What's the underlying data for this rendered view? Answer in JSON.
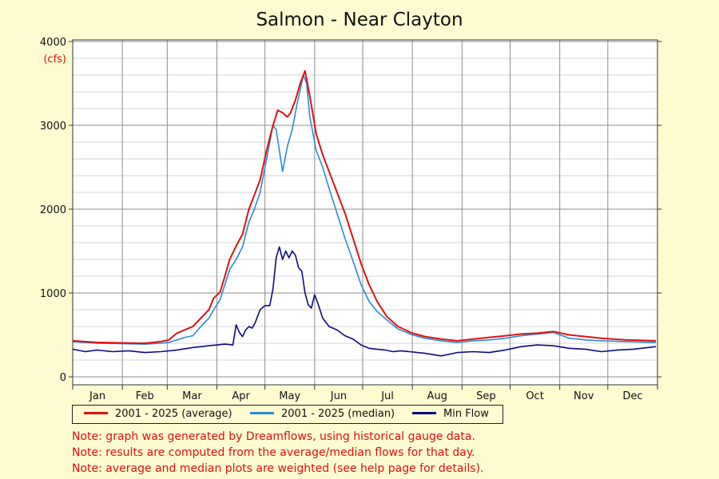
{
  "chart_data": {
    "type": "line",
    "title": "Salmon - Near Clayton",
    "ylabel": "(cfs)",
    "xlabel": "",
    "ylim": [
      0,
      4000
    ],
    "xlim": [
      0,
      365
    ],
    "yticks": [
      0,
      1000,
      2000,
      3000,
      4000
    ],
    "month_labels": [
      "Jan",
      "Feb",
      "Mar",
      "Apr",
      "May",
      "Jun",
      "Jul",
      "Aug",
      "Sep",
      "Oct",
      "Nov",
      "Dec"
    ],
    "grid": true,
    "legend_placement": "bottom-left",
    "series": [
      {
        "name": "2001 - 2025 (average)",
        "color": "#e01010",
        "points": [
          [
            0,
            430
          ],
          [
            15,
            410
          ],
          [
            30,
            405
          ],
          [
            45,
            400
          ],
          [
            55,
            420
          ],
          [
            60,
            440
          ],
          [
            65,
            520
          ],
          [
            70,
            560
          ],
          [
            75,
            600
          ],
          [
            80,
            700
          ],
          [
            85,
            800
          ],
          [
            88,
            940
          ],
          [
            92,
            1010
          ],
          [
            95,
            1200
          ],
          [
            98,
            1400
          ],
          [
            102,
            1560
          ],
          [
            106,
            1700
          ],
          [
            108,
            1850
          ],
          [
            110,
            2000
          ],
          [
            113,
            2150
          ],
          [
            117,
            2350
          ],
          [
            121,
            2700
          ],
          [
            125,
            3000
          ],
          [
            128,
            3180
          ],
          [
            131,
            3150
          ],
          [
            134,
            3100
          ],
          [
            136,
            3150
          ],
          [
            139,
            3300
          ],
          [
            142,
            3500
          ],
          [
            145,
            3650
          ],
          [
            148,
            3350
          ],
          [
            152,
            2900
          ],
          [
            156,
            2650
          ],
          [
            160,
            2450
          ],
          [
            165,
            2200
          ],
          [
            170,
            1950
          ],
          [
            175,
            1650
          ],
          [
            180,
            1350
          ],
          [
            185,
            1100
          ],
          [
            190,
            900
          ],
          [
            196,
            720
          ],
          [
            203,
            600
          ],
          [
            212,
            520
          ],
          [
            220,
            480
          ],
          [
            230,
            450
          ],
          [
            240,
            430
          ],
          [
            250,
            450
          ],
          [
            260,
            470
          ],
          [
            270,
            490
          ],
          [
            280,
            510
          ],
          [
            290,
            520
          ],
          [
            300,
            540
          ],
          [
            310,
            500
          ],
          [
            320,
            480
          ],
          [
            330,
            460
          ],
          [
            345,
            440
          ],
          [
            364,
            430
          ]
        ]
      },
      {
        "name": "2001 - 2025 (median)",
        "color": "#2b8ad6",
        "points": [
          [
            0,
            420
          ],
          [
            15,
            400
          ],
          [
            30,
            395
          ],
          [
            45,
            390
          ],
          [
            55,
            400
          ],
          [
            60,
            410
          ],
          [
            65,
            440
          ],
          [
            70,
            470
          ],
          [
            75,
            490
          ],
          [
            80,
            600
          ],
          [
            85,
            700
          ],
          [
            88,
            800
          ],
          [
            92,
            920
          ],
          [
            95,
            1100
          ],
          [
            98,
            1280
          ],
          [
            102,
            1400
          ],
          [
            106,
            1550
          ],
          [
            108,
            1700
          ],
          [
            110,
            1850
          ],
          [
            113,
            1980
          ],
          [
            117,
            2200
          ],
          [
            121,
            2600
          ],
          [
            125,
            3000
          ],
          [
            127,
            2950
          ],
          [
            129,
            2700
          ],
          [
            131,
            2450
          ],
          [
            134,
            2750
          ],
          [
            137,
            2950
          ],
          [
            140,
            3250
          ],
          [
            144,
            3600
          ],
          [
            146,
            3500
          ],
          [
            148,
            3100
          ],
          [
            152,
            2700
          ],
          [
            156,
            2500
          ],
          [
            160,
            2250
          ],
          [
            165,
            1950
          ],
          [
            170,
            1650
          ],
          [
            175,
            1380
          ],
          [
            180,
            1100
          ],
          [
            185,
            900
          ],
          [
            190,
            780
          ],
          [
            196,
            680
          ],
          [
            203,
            570
          ],
          [
            212,
            500
          ],
          [
            220,
            460
          ],
          [
            230,
            430
          ],
          [
            240,
            410
          ],
          [
            250,
            430
          ],
          [
            260,
            440
          ],
          [
            270,
            460
          ],
          [
            280,
            490
          ],
          [
            290,
            510
          ],
          [
            300,
            530
          ],
          [
            310,
            460
          ],
          [
            320,
            440
          ],
          [
            330,
            430
          ],
          [
            345,
            420
          ],
          [
            364,
            410
          ]
        ]
      },
      {
        "name": "Min Flow",
        "color": "#0a0a80",
        "points": [
          [
            0,
            330
          ],
          [
            8,
            300
          ],
          [
            15,
            320
          ],
          [
            25,
            300
          ],
          [
            35,
            310
          ],
          [
            45,
            290
          ],
          [
            55,
            300
          ],
          [
            65,
            320
          ],
          [
            75,
            350
          ],
          [
            85,
            370
          ],
          [
            95,
            390
          ],
          [
            100,
            380
          ],
          [
            102,
            620
          ],
          [
            104,
            530
          ],
          [
            106,
            480
          ],
          [
            108,
            560
          ],
          [
            110,
            600
          ],
          [
            112,
            580
          ],
          [
            114,
            650
          ],
          [
            117,
            800
          ],
          [
            120,
            850
          ],
          [
            123,
            850
          ],
          [
            125,
            1050
          ],
          [
            127,
            1420
          ],
          [
            129,
            1550
          ],
          [
            131,
            1400
          ],
          [
            133,
            1500
          ],
          [
            135,
            1420
          ],
          [
            137,
            1500
          ],
          [
            139,
            1450
          ],
          [
            141,
            1300
          ],
          [
            143,
            1260
          ],
          [
            145,
            1000
          ],
          [
            147,
            860
          ],
          [
            149,
            820
          ],
          [
            151,
            980
          ],
          [
            153,
            880
          ],
          [
            156,
            700
          ],
          [
            160,
            600
          ],
          [
            165,
            560
          ],
          [
            170,
            490
          ],
          [
            175,
            450
          ],
          [
            180,
            380
          ],
          [
            185,
            340
          ],
          [
            190,
            330
          ],
          [
            195,
            320
          ],
          [
            200,
            300
          ],
          [
            205,
            310
          ],
          [
            210,
            300
          ],
          [
            220,
            280
          ],
          [
            230,
            250
          ],
          [
            240,
            290
          ],
          [
            250,
            300
          ],
          [
            260,
            290
          ],
          [
            270,
            320
          ],
          [
            280,
            360
          ],
          [
            290,
            380
          ],
          [
            300,
            370
          ],
          [
            310,
            340
          ],
          [
            320,
            330
          ],
          [
            330,
            300
          ],
          [
            340,
            320
          ],
          [
            350,
            330
          ],
          [
            364,
            360
          ]
        ]
      }
    ]
  },
  "notes": [
    "Note: graph was generated by Dreamflows, using historical gauge data.",
    "Note: results are computed from the average/median flows for that day.",
    "Note: average and median plots are weighted (see help page for details)."
  ]
}
